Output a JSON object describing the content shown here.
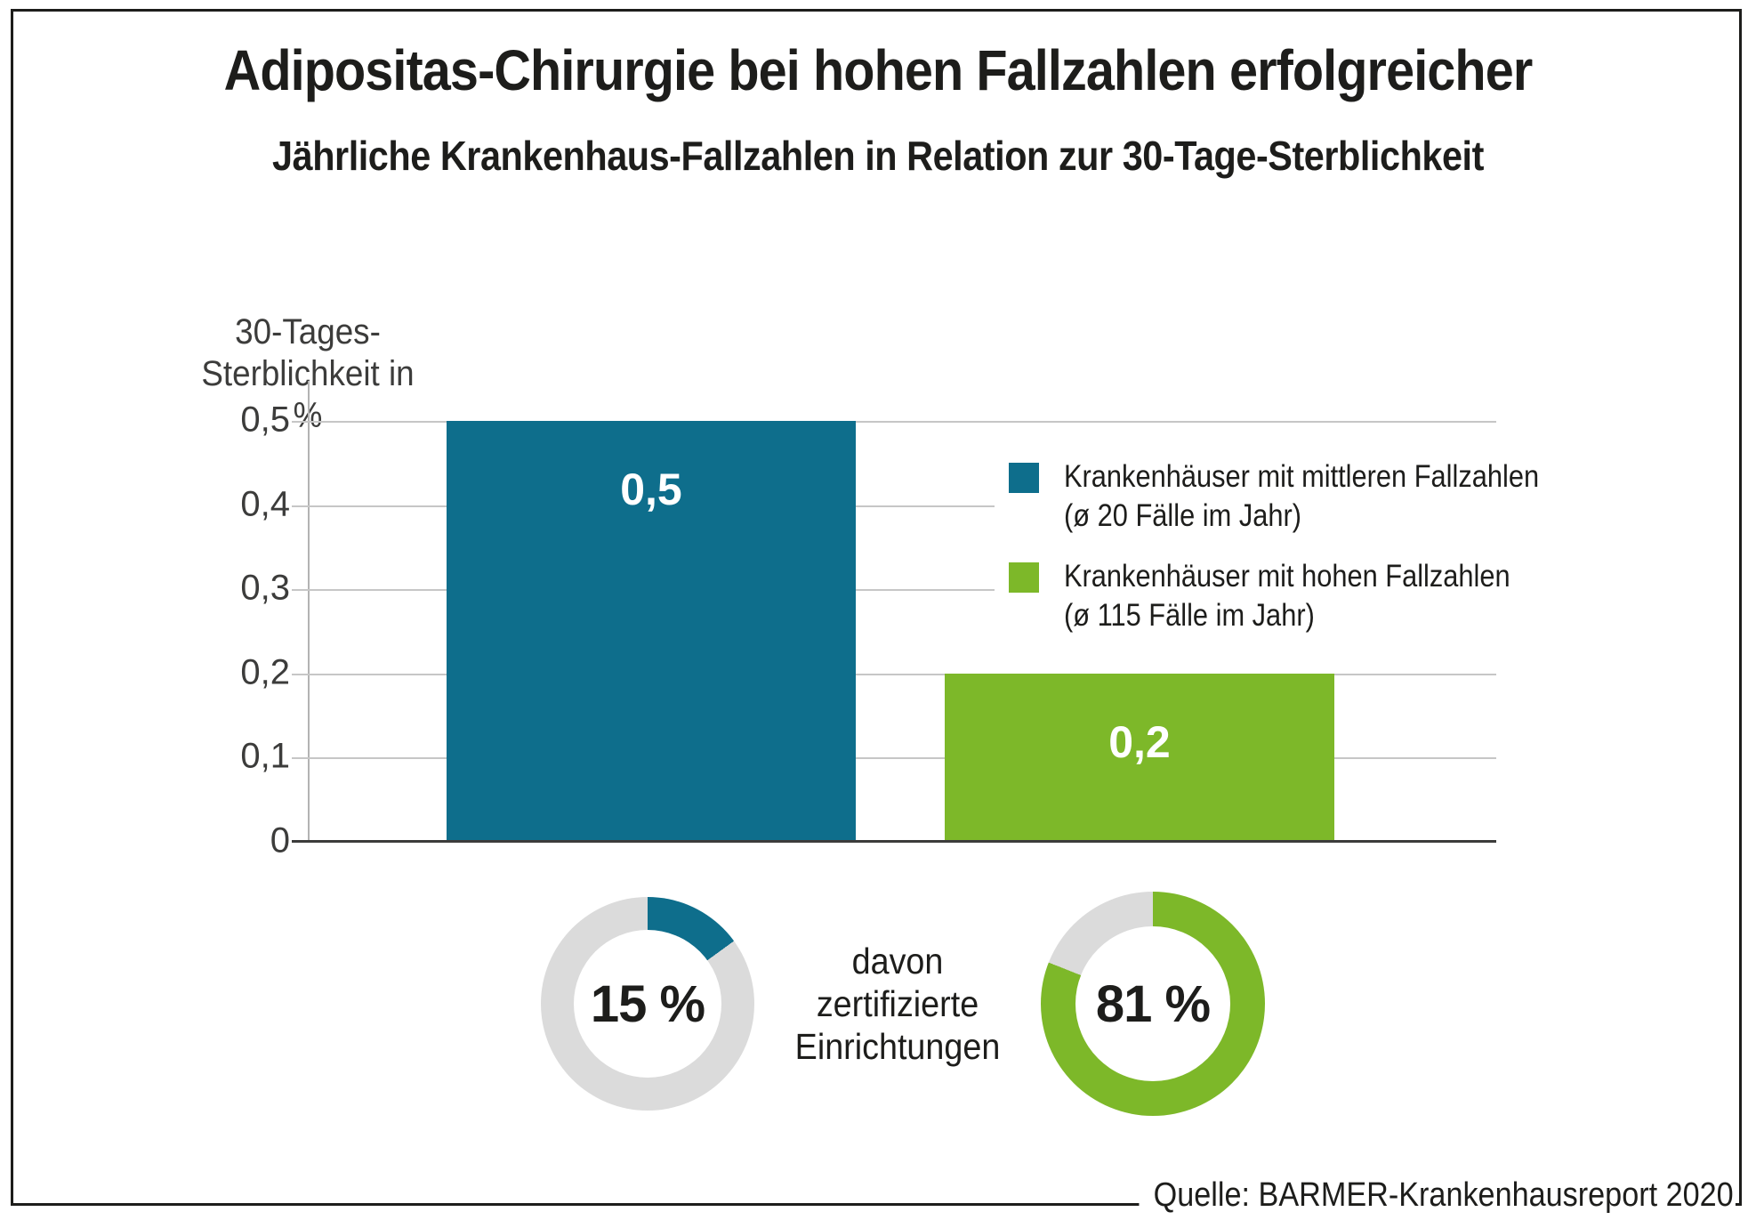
{
  "title": "Adipositas-Chirurgie bei hohen Fallzahlen erfolgreicher",
  "subtitle": "Jährliche Krankenhaus-Fallzahlen in Relation zur 30-Tage-Sterblichkeit",
  "source": "Quelle: BARMER-Krankenhausreport 2020",
  "colors": {
    "teal": "#0E6E8C",
    "green": "#7DB829",
    "donut_rest_gray": "#DBDBDB",
    "gridline": "#C6C6C6",
    "text": "#1D1D1B"
  },
  "chart_data": [
    {
      "type": "bar",
      "title": "Jährliche Krankenhaus-Fallzahlen in Relation zur 30-Tage-Sterblichkeit",
      "ylabel": "30-Tages-Sterblichkeit in %",
      "ylabel_lines": [
        "30-Tages-",
        "Sterblichkeit in %"
      ],
      "xlabel": "",
      "ylim": [
        0,
        0.5
      ],
      "yticks": [
        "0,5",
        "0,4",
        "0,3",
        "0,2",
        "0,1",
        "0"
      ],
      "grid": true,
      "legend_position": "right",
      "categories": [
        "Krankenhäuser mit mittleren Fallzahlen (ø 20 Fälle im Jahr)",
        "Krankenhäuser mit hohen Fallzahlen (ø 115 Fälle im Jahr)"
      ],
      "values": [
        0.5,
        0.2
      ],
      "value_labels": [
        "0,5",
        "0,2"
      ],
      "bar_colors": [
        "#0E6E8C",
        "#7DB829"
      ]
    },
    {
      "type": "pie",
      "donut": true,
      "label": "15 %",
      "values": [
        15,
        85
      ],
      "segment_colors": [
        "#0E6E8C",
        "#DBDBDB"
      ],
      "annotation": "davon zertifizierte Einrichtungen"
    },
    {
      "type": "pie",
      "donut": true,
      "label": "81 %",
      "values": [
        81,
        19
      ],
      "segment_colors": [
        "#7DB829",
        "#DBDBDB"
      ],
      "annotation": "davon zertifizierte Einrichtungen"
    }
  ],
  "legend": {
    "items": [
      {
        "line1": "Krankenhäuser mit mittleren Fallzahlen",
        "line2": "(ø 20 Fälle im Jahr)"
      },
      {
        "line1": "Krankenhäuser mit hohen Fallzahlen",
        "line2": "(ø 115 Fälle im Jahr)"
      }
    ]
  },
  "donut_caption_lines": [
    "davon",
    "zertifizierte",
    "Einrichtungen"
  ]
}
